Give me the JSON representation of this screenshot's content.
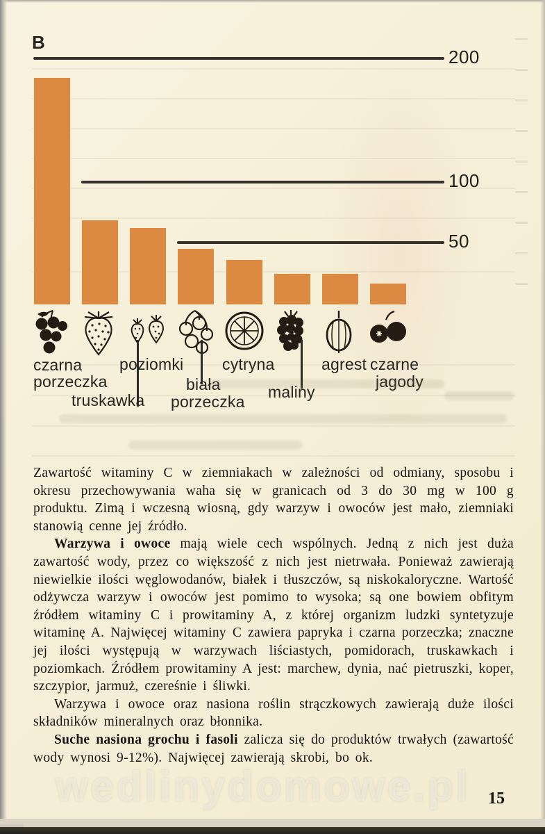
{
  "page": {
    "section_label": "B",
    "page_number": "15",
    "watermark": "wedlinydomowe.pl"
  },
  "chart_data": {
    "type": "bar",
    "title": "",
    "categories": [
      "czarna porzeczka",
      "truskawka",
      "poziomki",
      "biała porzeczka",
      "cytryna",
      "maliny",
      "agrest",
      "czarne jagody"
    ],
    "values": [
      183,
      68,
      62,
      45,
      36,
      25,
      25,
      17
    ],
    "axis_tick_labels": [
      "200",
      "100",
      "50"
    ],
    "axis_tick_values": [
      200,
      100,
      50
    ],
    "ylim": [
      0,
      200
    ],
    "grid": "horizontal lines at 200, 100, 50",
    "legend": "none",
    "bar_color": "#dc8a42",
    "icons": [
      "blackcurrant-icon",
      "strawberry-icon",
      "wild-strawberries-icon",
      "white-currant-icon",
      "lemon-slice-icon",
      "raspberry-icon",
      "gooseberry-icon",
      "blueberries-icon"
    ],
    "label_lines": [
      [
        "czarna",
        "porzeczka"
      ],
      [
        "truskawka"
      ],
      [
        "poziomki"
      ],
      [
        "biała",
        "porzeczka"
      ],
      [
        "cytryna"
      ],
      [
        "maliny"
      ],
      [
        "agrest"
      ],
      [
        "czarne",
        "jagody"
      ]
    ]
  },
  "body": {
    "paragraphs": [
      {
        "bold": "",
        "text": "Zawartość witaminy C w ziemniakach w zależności od odmiany, sposobu i okresu przechowywania waha się w granicach od 3 do 30 mg w 100 g produktu. Zimą i wczesną wiosną, gdy warzyw i owoców jest mało, ziemniaki stanowią cenne jej źródło."
      },
      {
        "bold": "Warzywa i owoce",
        "text": " mają wiele cech wspólnych. Jedną z nich jest duża zawartość wody, przez co większość z nich jest nietrwała. Ponieważ zawierają niewielkie ilości węglowodanów, białek i tłuszczów, są niskokaloryczne. Wartość odżywcza warzyw i owoców jest pomimo to wysoka; są one bowiem obfitym źródłem witaminy C i prowitaminy A, z której organizm ludzki syntetyzuje witaminę A. Najwięcej witaminy C zawiera papryka i czarna porzeczka; znaczne jej ilości występują w warzywach liściastych, pomidorach, truskawkach i poziomkach. Źródłem prowitaminy A jest: marchew, dynia, nać pietruszki, koper, szczypior, jarmuż, czereśnie i śliwki."
      },
      {
        "bold": "",
        "text": "Warzywa i owoce oraz nasiona roślin strączkowych zawierają duże ilości składników mineralnych oraz błonnika."
      },
      {
        "bold": "Suche nasiona grochu i fasoli",
        "text": " zalicza się do produktów trwałych (zawartość wody wynosi 9-12%). Najwięcej zawierają skrobi, bo ok."
      }
    ]
  }
}
